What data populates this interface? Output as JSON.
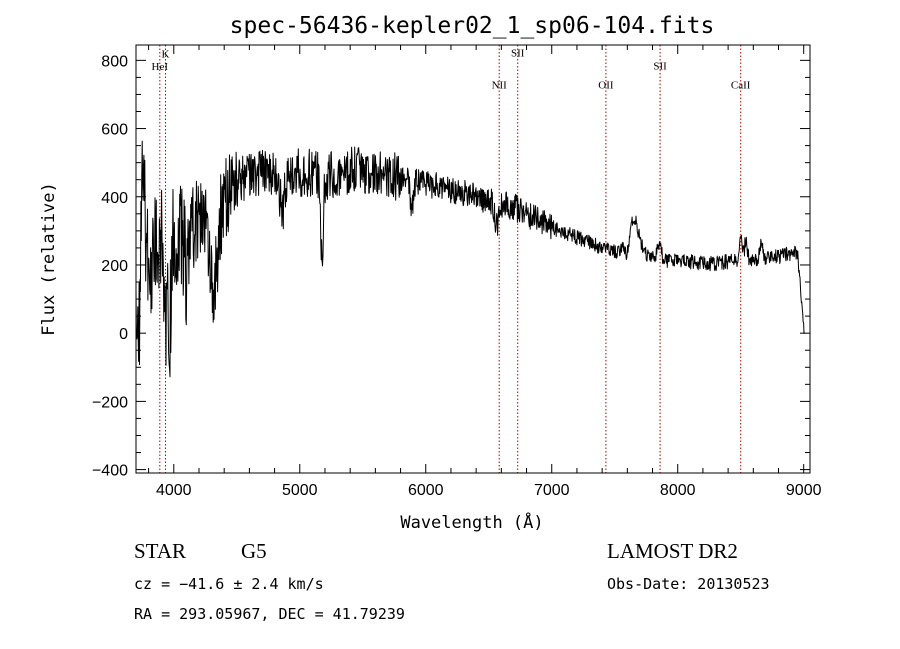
{
  "chart_data": {
    "type": "line",
    "title": "spec-56436-kepler02_1_sp06-104.fits",
    "xlabel": "Wavelength (Å)",
    "ylabel": "Flux (relative)",
    "xlim": [
      3700,
      9050
    ],
    "ylim": [
      -410,
      845
    ],
    "xticks": [
      4000,
      5000,
      6000,
      7000,
      8000,
      9000
    ],
    "yticks": [
      -400,
      -200,
      0,
      200,
      400,
      600,
      800
    ],
    "series": [
      {
        "color": "#000000",
        "anchors": [
          [
            3700,
            0
          ],
          [
            3730,
            10
          ],
          [
            3750,
            600
          ],
          [
            3770,
            350
          ],
          [
            3800,
            200
          ],
          [
            3850,
            260
          ],
          [
            3900,
            280
          ],
          [
            3950,
            270
          ],
          [
            4000,
            300
          ],
          [
            4100,
            310
          ],
          [
            4200,
            330
          ],
          [
            4300,
            350
          ],
          [
            4400,
            380
          ],
          [
            4500,
            440
          ],
          [
            4600,
            460
          ],
          [
            4700,
            470
          ],
          [
            4800,
            475
          ],
          [
            4900,
            480
          ],
          [
            5000,
            470
          ],
          [
            5100,
            470
          ],
          [
            5200,
            460
          ],
          [
            5300,
            470
          ],
          [
            5400,
            475
          ],
          [
            5500,
            480
          ],
          [
            5600,
            475
          ],
          [
            5700,
            465
          ],
          [
            5800,
            455
          ],
          [
            5900,
            450
          ],
          [
            6000,
            440
          ],
          [
            6100,
            430
          ],
          [
            6200,
            420
          ],
          [
            6300,
            410
          ],
          [
            6400,
            400
          ],
          [
            6500,
            390
          ],
          [
            6600,
            380
          ],
          [
            6700,
            370
          ],
          [
            6800,
            350
          ],
          [
            6900,
            330
          ],
          [
            7000,
            310
          ],
          [
            7100,
            295
          ],
          [
            7200,
            280
          ],
          [
            7300,
            265
          ],
          [
            7400,
            250
          ],
          [
            7500,
            240
          ],
          [
            7600,
            245
          ],
          [
            7700,
            230
          ],
          [
            7800,
            220
          ],
          [
            7900,
            215
          ],
          [
            8000,
            212
          ],
          [
            8100,
            210
          ],
          [
            8200,
            205
          ],
          [
            8300,
            205
          ],
          [
            8400,
            210
          ],
          [
            8500,
            215
          ],
          [
            8600,
            215
          ],
          [
            8700,
            220
          ],
          [
            8800,
            225
          ],
          [
            8900,
            235
          ],
          [
            8950,
            240
          ],
          [
            9000,
            30
          ]
        ],
        "features": [
          {
            "x": 3935,
            "depth": 250,
            "width": 14
          },
          {
            "x": 3970,
            "depth": 230,
            "width": 12
          },
          {
            "x": 4101,
            "depth": 150,
            "width": 15
          },
          {
            "x": 4300,
            "depth": 200,
            "width": 25
          },
          {
            "x": 4340,
            "depth": 130,
            "width": 18
          },
          {
            "x": 4861,
            "depth": 110,
            "width": 22
          },
          {
            "x": 5175,
            "depth": 220,
            "width": 12
          },
          {
            "x": 5890,
            "depth": 90,
            "width": 14
          },
          {
            "x": 6563,
            "depth": 70,
            "width": 18
          },
          {
            "x": 7650,
            "depth": -100,
            "width": 40
          },
          {
            "x": 7600,
            "depth": 45,
            "width": 20
          },
          {
            "x": 7850,
            "depth": -40,
            "width": 18
          },
          {
            "x": 8500,
            "depth": -70,
            "width": 12
          },
          {
            "x": 8542,
            "depth": -60,
            "width": 10
          },
          {
            "x": 8662,
            "depth": -50,
            "width": 10
          }
        ]
      }
    ],
    "lines": [
      {
        "label": "HeI",
        "x": 3889,
        "label_y": 771
      },
      {
        "label": "K",
        "x": 3934,
        "label_y": 808
      },
      {
        "label": "NII",
        "x": 6583,
        "label_y": 718
      },
      {
        "label": "SII",
        "x": 6730,
        "label_y": 812
      },
      {
        "label": "OII",
        "x": 7430,
        "label_y": 718
      },
      {
        "label": "SII",
        "x": 7860,
        "label_y": 773
      },
      {
        "label": "CaII",
        "x": 8500,
        "label_y": 718
      }
    ]
  },
  "info": {
    "object_class": "STAR",
    "subclass": "G5",
    "cz": "cz = −41.6 ± 2.4 km/s",
    "coords": "RA = 293.05967, DEC =  41.79239",
    "survey": "LAMOST DR2",
    "obs_date": "Obs-Date: 20130523"
  }
}
